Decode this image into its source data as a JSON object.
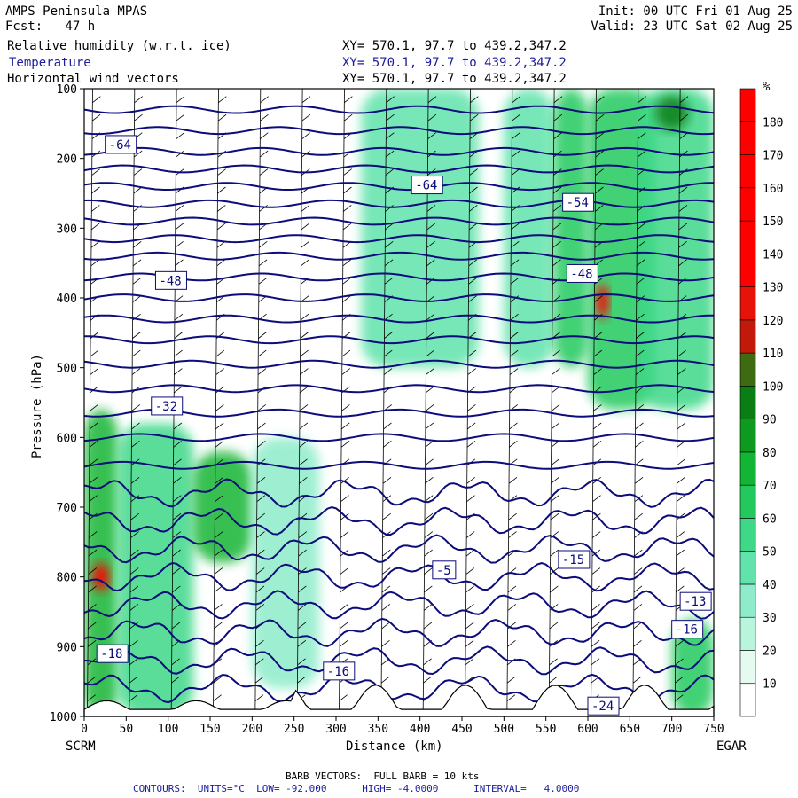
{
  "header": {
    "model": "AMPS Peninsula MPAS",
    "fcst": "Fcst:   47 h",
    "init": "Init: 00 UTC Fri 01 Aug 25",
    "valid": "Valid: 23 UTC Sat 02 Aug 25",
    "fields": [
      {
        "label": "Relative humidity (w.r.t. ice)",
        "xy": "XY= 570.1, 97.7 to 439.2,347.2",
        "color": "#000000"
      },
      {
        "label": "Temperature",
        "xy": "XY= 570.1, 97.7 to 439.2,347.2",
        "color": "#1c1c9c"
      },
      {
        "label": "Horizontal wind vectors",
        "xy": "XY= 570.1, 97.7 to 439.2,347.2",
        "color": "#000000"
      }
    ]
  },
  "footer": {
    "barb": "BARB VECTORS:  FULL BARB = 10 kts",
    "contours": "CONTOURS:  UNITS=°C  LOW= -92.000      HIGH= -4.0000      INTERVAL=   4.0000"
  },
  "colors": {
    "contour": "#0c0c7a",
    "rh_scale": [
      "#ffffff",
      "#e6fbf0",
      "#b8f5dc",
      "#8eeccb",
      "#61e3ab",
      "#3ed888",
      "#23c95d",
      "#12b534",
      "#0e9a1e",
      "#0a7e14",
      "#3e6b12",
      "#c21a0a",
      "#e5130a",
      "#ff0000",
      "#ff0000",
      "#ff0000",
      "#ff0000",
      "#ff0000",
      "#ff0000"
    ]
  },
  "chart_data": {
    "type": "heatmap",
    "title": "Relative humidity (w.r.t. ice)",
    "xlabel": "Distance (km)",
    "ylabel": "Pressure (hPa)",
    "xlim": [
      0,
      750
    ],
    "ylim": [
      1000,
      100
    ],
    "x_ticks": [
      0,
      50,
      100,
      150,
      200,
      250,
      300,
      350,
      400,
      450,
      500,
      550,
      600,
      650,
      700,
      750
    ],
    "y_ticks": [
      100,
      200,
      300,
      400,
      500,
      600,
      700,
      800,
      900,
      1000
    ],
    "x_endpoints": {
      "left": "SCRM",
      "right": "EGAR"
    },
    "colorbar": {
      "unit": "%",
      "ticks": [
        10,
        20,
        30,
        40,
        50,
        60,
        70,
        80,
        90,
        100,
        110,
        120,
        130,
        140,
        150,
        160,
        170,
        180
      ]
    },
    "rh_regions": [
      {
        "x": [
          0,
          40
        ],
        "p": [
          560,
          1000
        ],
        "rh": 70
      },
      {
        "x": [
          10,
          30
        ],
        "p": [
          780,
          820
        ],
        "rh": 140
      },
      {
        "x": [
          40,
          130
        ],
        "p": [
          580,
          1000
        ],
        "rh": 55
      },
      {
        "x": [
          130,
          200
        ],
        "p": [
          620,
          780
        ],
        "rh": 70
      },
      {
        "x": [
          200,
          280
        ],
        "p": [
          600,
          960
        ],
        "rh": 35
      },
      {
        "x": [
          330,
          470
        ],
        "p": [
          100,
          500
        ],
        "rh": 40
      },
      {
        "x": [
          500,
          560
        ],
        "p": [
          100,
          500
        ],
        "rh": 40
      },
      {
        "x": [
          560,
          600
        ],
        "p": [
          100,
          500
        ],
        "rh": 65
      },
      {
        "x": [
          600,
          680
        ],
        "p": [
          100,
          560
        ],
        "rh": 65
      },
      {
        "x": [
          610,
          625
        ],
        "p": [
          380,
          430
        ],
        "rh": 140
      },
      {
        "x": [
          660,
          750
        ],
        "p": [
          100,
          560
        ],
        "rh": 55
      },
      {
        "x": [
          680,
          720
        ],
        "p": [
          110,
          160
        ],
        "rh": 90
      },
      {
        "x": [
          700,
          750
        ],
        "p": [
          860,
          1000
        ],
        "rh": 60
      }
    ],
    "temperature_labels": [
      {
        "x": 25,
        "p": 180,
        "value": "-64"
      },
      {
        "x": 85,
        "p": 375,
        "value": "-48"
      },
      {
        "x": 80,
        "p": 555,
        "value": "-32"
      },
      {
        "x": 390,
        "p": 238,
        "value": "-64"
      },
      {
        "x": 570,
        "p": 263,
        "value": "-54"
      },
      {
        "x": 575,
        "p": 365,
        "value": "-48"
      },
      {
        "x": 415,
        "p": 790,
        "value": "-5"
      },
      {
        "x": 565,
        "p": 775,
        "value": "-15"
      },
      {
        "x": 15,
        "p": 910,
        "value": "-18"
      },
      {
        "x": 285,
        "p": 935,
        "value": "-16"
      },
      {
        "x": 700,
        "p": 875,
        "value": "-16"
      },
      {
        "x": 710,
        "p": 835,
        "value": "-13"
      },
      {
        "x": 600,
        "p": 985,
        "value": "-24"
      }
    ],
    "temperature_contours_hPa": [
      130,
      160,
      190,
      215,
      240,
      265,
      290,
      315,
      340,
      370,
      400,
      430,
      460,
      495,
      530,
      565,
      600,
      640,
      680,
      720,
      760,
      800,
      840,
      880,
      920,
      960
    ]
  }
}
